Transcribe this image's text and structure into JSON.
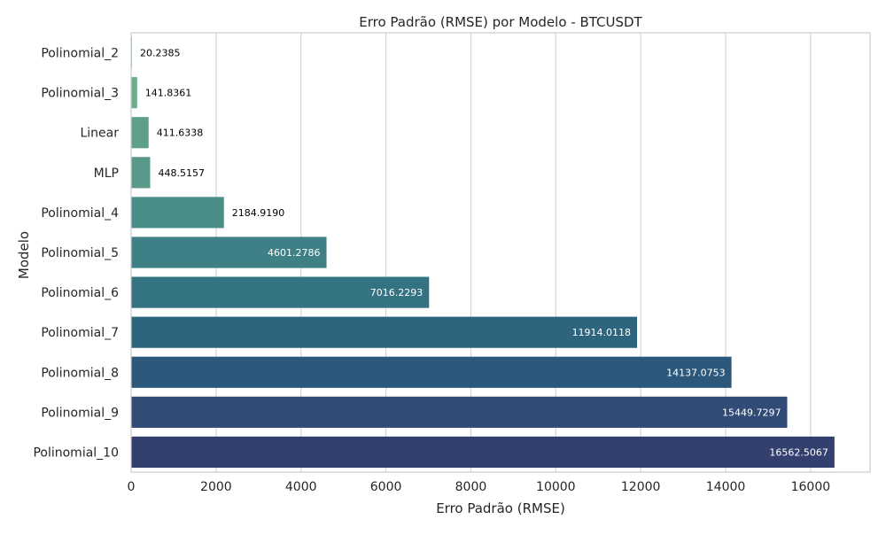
{
  "chart_data": {
    "type": "bar",
    "orientation": "horizontal",
    "title": "Erro Padrão (RMSE) por Modelo - BTCUSDT",
    "xlabel": "Erro Padrão (RMSE)",
    "ylabel": "Modelo",
    "xlim": [
      0,
      17400
    ],
    "xticks": [
      0,
      2000,
      4000,
      6000,
      8000,
      10000,
      12000,
      14000,
      16000
    ],
    "grid": "x",
    "categories": [
      "Polinomial_2",
      "Polinomial_3",
      "Linear",
      "MLP",
      "Polinomial_4",
      "Polinomial_5",
      "Polinomial_6",
      "Polinomial_7",
      "Polinomial_8",
      "Polinomial_9",
      "Polinomial_10"
    ],
    "values": [
      20.2385,
      141.8361,
      411.6338,
      448.5157,
      2184.919,
      4601.2786,
      7016.2293,
      11914.0118,
      14137.0753,
      15449.7297,
      16562.5067
    ],
    "value_labels": [
      "20.2385",
      "141.8361",
      "411.6338",
      "448.5157",
      "2184.9190",
      "4601.2786",
      "7016.2293",
      "11914.0118",
      "14137.0753",
      "15449.7297",
      "16562.5067"
    ],
    "colors": [
      "#83bd9c",
      "#6cad8f",
      "#5e9f8a",
      "#59998a",
      "#4a8e88",
      "#3e8085",
      "#347382",
      "#2d657f",
      "#2b587b",
      "#2f4b76",
      "#33406f"
    ],
    "palette": "crest"
  }
}
